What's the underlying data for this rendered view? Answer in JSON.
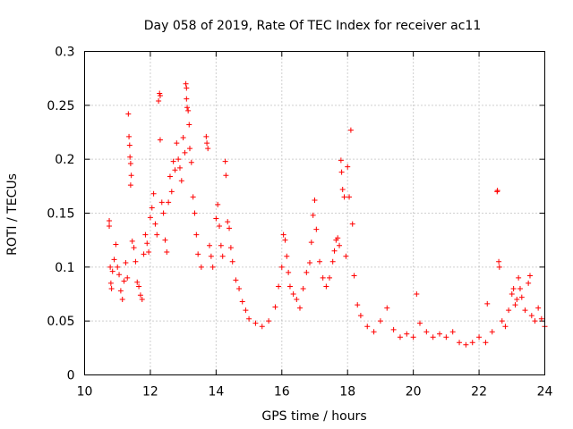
{
  "chart_data": {
    "type": "scatter",
    "title": "Day 058 of 2019, Rate Of TEC Index for receiver ac11",
    "xlabel": "GPS time / hours",
    "ylabel": "ROTI / TECUs",
    "xlim": [
      10,
      24
    ],
    "ylim": [
      0,
      0.3
    ],
    "x_ticks": [
      10,
      12,
      14,
      16,
      18,
      20,
      22,
      24
    ],
    "y_ticks": [
      0,
      0.05,
      0.1,
      0.15,
      0.2,
      0.25,
      0.3
    ],
    "x_tick_labels": [
      "10",
      "12",
      "14",
      "16",
      "18",
      "20",
      "22",
      "24"
    ],
    "y_tick_labels": [
      "0",
      "0.05",
      "0.1",
      "0.15",
      "0.2",
      "0.25",
      "0.3"
    ],
    "grid": true,
    "marker": "+",
    "color": "#ff0000",
    "series": [
      {
        "name": "ROTI",
        "points": [
          [
            10.75,
            0.143
          ],
          [
            10.75,
            0.138
          ],
          [
            10.78,
            0.1
          ],
          [
            10.8,
            0.085
          ],
          [
            10.82,
            0.08
          ],
          [
            10.85,
            0.096
          ],
          [
            10.9,
            0.107
          ],
          [
            10.95,
            0.121
          ],
          [
            11.0,
            0.1
          ],
          [
            11.05,
            0.093
          ],
          [
            11.1,
            0.078
          ],
          [
            11.15,
            0.07
          ],
          [
            11.2,
            0.087
          ],
          [
            11.25,
            0.104
          ],
          [
            11.3,
            0.09
          ],
          [
            11.33,
            0.242
          ],
          [
            11.35,
            0.221
          ],
          [
            11.37,
            0.213
          ],
          [
            11.38,
            0.202
          ],
          [
            11.4,
            0.196
          ],
          [
            11.42,
            0.185
          ],
          [
            11.4,
            0.176
          ],
          [
            11.45,
            0.124
          ],
          [
            11.5,
            0.118
          ],
          [
            11.55,
            0.105
          ],
          [
            11.6,
            0.086
          ],
          [
            11.65,
            0.082
          ],
          [
            11.7,
            0.074
          ],
          [
            11.75,
            0.07
          ],
          [
            11.8,
            0.112
          ],
          [
            11.85,
            0.13
          ],
          [
            11.9,
            0.122
          ],
          [
            11.95,
            0.114
          ],
          [
            12.0,
            0.146
          ],
          [
            12.05,
            0.155
          ],
          [
            12.1,
            0.168
          ],
          [
            12.15,
            0.14
          ],
          [
            12.2,
            0.13
          ],
          [
            12.28,
            0.261
          ],
          [
            12.3,
            0.259
          ],
          [
            12.25,
            0.254
          ],
          [
            12.3,
            0.218
          ],
          [
            12.35,
            0.16
          ],
          [
            12.4,
            0.15
          ],
          [
            12.45,
            0.125
          ],
          [
            12.5,
            0.114
          ],
          [
            12.55,
            0.16
          ],
          [
            12.6,
            0.184
          ],
          [
            12.65,
            0.17
          ],
          [
            12.7,
            0.198
          ],
          [
            12.75,
            0.19
          ],
          [
            12.8,
            0.215
          ],
          [
            12.85,
            0.2
          ],
          [
            12.9,
            0.192
          ],
          [
            12.95,
            0.18
          ],
          [
            13.0,
            0.22
          ],
          [
            13.05,
            0.206
          ],
          [
            13.08,
            0.27
          ],
          [
            13.1,
            0.266
          ],
          [
            13.1,
            0.256
          ],
          [
            13.12,
            0.248
          ],
          [
            13.15,
            0.245
          ],
          [
            13.18,
            0.232
          ],
          [
            13.2,
            0.21
          ],
          [
            13.25,
            0.197
          ],
          [
            13.3,
            0.165
          ],
          [
            13.35,
            0.15
          ],
          [
            13.4,
            0.13
          ],
          [
            13.45,
            0.112
          ],
          [
            13.55,
            0.1
          ],
          [
            13.7,
            0.221
          ],
          [
            13.72,
            0.215
          ],
          [
            13.75,
            0.21
          ],
          [
            13.8,
            0.12
          ],
          [
            13.85,
            0.11
          ],
          [
            13.9,
            0.1
          ],
          [
            14.0,
            0.145
          ],
          [
            14.05,
            0.158
          ],
          [
            14.1,
            0.138
          ],
          [
            14.15,
            0.12
          ],
          [
            14.2,
            0.11
          ],
          [
            14.28,
            0.198
          ],
          [
            14.3,
            0.185
          ],
          [
            14.35,
            0.142
          ],
          [
            14.4,
            0.136
          ],
          [
            14.45,
            0.118
          ],
          [
            14.5,
            0.105
          ],
          [
            14.6,
            0.088
          ],
          [
            14.7,
            0.08
          ],
          [
            14.8,
            0.068
          ],
          [
            14.9,
            0.06
          ],
          [
            15.0,
            0.052
          ],
          [
            15.2,
            0.048
          ],
          [
            15.4,
            0.045
          ],
          [
            15.6,
            0.05
          ],
          [
            15.8,
            0.063
          ],
          [
            15.9,
            0.082
          ],
          [
            16.0,
            0.1
          ],
          [
            16.05,
            0.13
          ],
          [
            16.1,
            0.125
          ],
          [
            16.15,
            0.11
          ],
          [
            16.2,
            0.095
          ],
          [
            16.25,
            0.082
          ],
          [
            16.35,
            0.075
          ],
          [
            16.45,
            0.07
          ],
          [
            16.55,
            0.062
          ],
          [
            16.65,
            0.08
          ],
          [
            16.75,
            0.095
          ],
          [
            16.85,
            0.104
          ],
          [
            16.9,
            0.123
          ],
          [
            16.95,
            0.148
          ],
          [
            17.0,
            0.162
          ],
          [
            17.05,
            0.135
          ],
          [
            17.15,
            0.105
          ],
          [
            17.25,
            0.09
          ],
          [
            17.35,
            0.082
          ],
          [
            17.45,
            0.09
          ],
          [
            17.55,
            0.105
          ],
          [
            17.6,
            0.115
          ],
          [
            17.65,
            0.125
          ],
          [
            17.7,
            0.127
          ],
          [
            17.75,
            0.12
          ],
          [
            17.8,
            0.199
          ],
          [
            17.82,
            0.188
          ],
          [
            17.85,
            0.172
          ],
          [
            17.9,
            0.165
          ],
          [
            17.95,
            0.11
          ],
          [
            18.0,
            0.193
          ],
          [
            18.05,
            0.165
          ],
          [
            18.1,
            0.227
          ],
          [
            18.15,
            0.14
          ],
          [
            18.2,
            0.092
          ],
          [
            18.3,
            0.065
          ],
          [
            18.4,
            0.055
          ],
          [
            18.6,
            0.045
          ],
          [
            18.8,
            0.04
          ],
          [
            19.0,
            0.05
          ],
          [
            19.2,
            0.062
          ],
          [
            19.4,
            0.042
          ],
          [
            19.6,
            0.035
          ],
          [
            19.8,
            0.038
          ],
          [
            20.0,
            0.035
          ],
          [
            20.1,
            0.075
          ],
          [
            20.2,
            0.048
          ],
          [
            20.4,
            0.04
          ],
          [
            20.6,
            0.035
          ],
          [
            20.8,
            0.038
          ],
          [
            21.0,
            0.035
          ],
          [
            21.2,
            0.04
          ],
          [
            21.4,
            0.03
          ],
          [
            21.6,
            0.028
          ],
          [
            21.8,
            0.03
          ],
          [
            22.0,
            0.035
          ],
          [
            22.2,
            0.03
          ],
          [
            22.25,
            0.066
          ],
          [
            22.4,
            0.04
          ],
          [
            22.55,
            0.17
          ],
          [
            22.56,
            0.171
          ],
          [
            22.6,
            0.105
          ],
          [
            22.62,
            0.1
          ],
          [
            22.7,
            0.05
          ],
          [
            22.8,
            0.045
          ],
          [
            22.9,
            0.06
          ],
          [
            23.0,
            0.075
          ],
          [
            23.05,
            0.08
          ],
          [
            23.1,
            0.065
          ],
          [
            23.15,
            0.07
          ],
          [
            23.2,
            0.09
          ],
          [
            23.25,
            0.08
          ],
          [
            23.3,
            0.072
          ],
          [
            23.4,
            0.06
          ],
          [
            23.5,
            0.085
          ],
          [
            23.55,
            0.092
          ],
          [
            23.6,
            0.055
          ],
          [
            23.7,
            0.05
          ],
          [
            23.8,
            0.062
          ],
          [
            23.9,
            0.052
          ],
          [
            24.0,
            0.045
          ]
        ]
      }
    ]
  }
}
